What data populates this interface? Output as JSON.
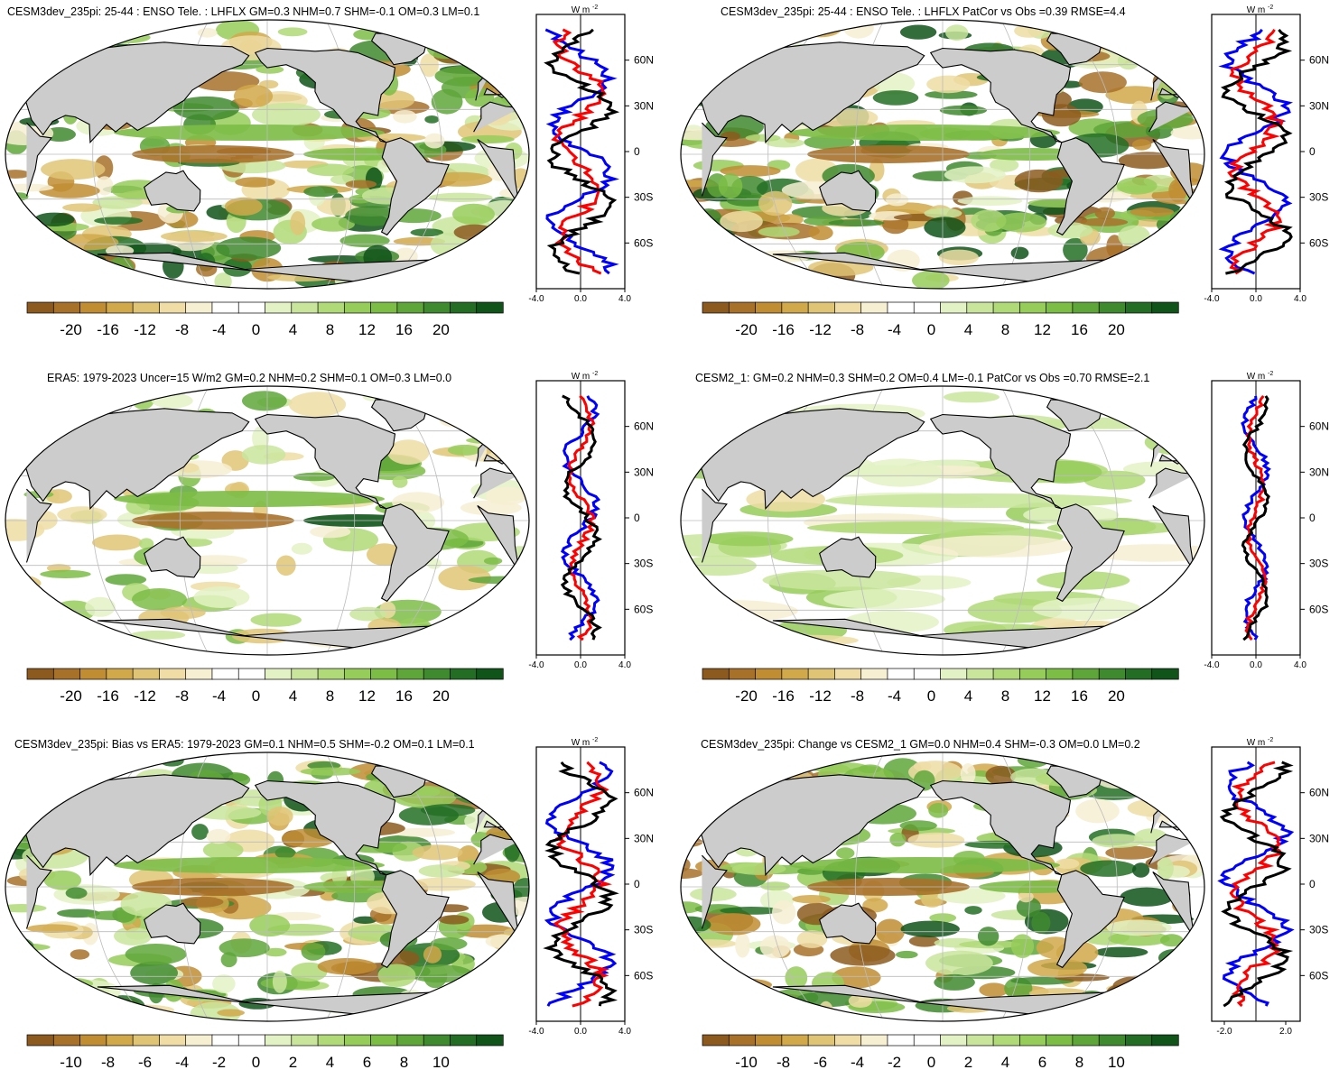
{
  "chart_data": [
    {
      "type": "heatmap",
      "title": "CESM3dev_235pi: 25-44 : ENSO Tele. : LHFLX GM=0.3 NHM=0.7 SHM=-0.1 OM=0.3 LM=0.1",
      "colorbar_ticks": [
        "-20",
        "-16",
        "-12",
        "-8",
        "-4",
        "0",
        "4",
        "8",
        "12",
        "16",
        "20"
      ],
      "zonal_mean": {
        "unit_label": "W m",
        "unit_exp": "-2",
        "xlim": [
          -4,
          4
        ],
        "xticks": [
          "-4.0",
          "0.0",
          "4.0"
        ],
        "lat_labels": [
          "60N",
          "30N",
          "0",
          "30S",
          "60S"
        ]
      },
      "style": "model",
      "seed": 3
    },
    {
      "type": "heatmap",
      "title": "CESM3dev_235pi: 25-44 : ENSO Tele. : LHFLX PatCor vs Obs =0.39 RMSE=4.4",
      "colorbar_ticks": [
        "-20",
        "-16",
        "-12",
        "-8",
        "-4",
        "0",
        "4",
        "8",
        "12",
        "16",
        "20"
      ],
      "zonal_mean": {
        "unit_label": "W m",
        "unit_exp": "-2",
        "xlim": [
          -4,
          4
        ],
        "xticks": [
          "-4.0",
          "0.0",
          "4.0"
        ],
        "lat_labels": [
          "60N",
          "30N",
          "0",
          "30S",
          "60S"
        ]
      },
      "style": "model",
      "seed": 5
    },
    {
      "type": "heatmap",
      "title": "ERA5: 1979-2023 Uncer=15 W/m2 GM=0.2 NHM=0.2 SHM=0.1 OM=0.3 LM=0.0",
      "colorbar_ticks": [
        "-20",
        "-16",
        "-12",
        "-8",
        "-4",
        "0",
        "4",
        "8",
        "12",
        "16",
        "20"
      ],
      "zonal_mean": {
        "unit_label": "W m",
        "unit_exp": "-2",
        "xlim": [
          -4,
          4
        ],
        "xticks": [
          "-4.0",
          "0.0",
          "4.0"
        ],
        "lat_labels": [
          "60N",
          "30N",
          "0",
          "30S",
          "60S"
        ]
      },
      "style": "obs",
      "seed": 7
    },
    {
      "type": "heatmap",
      "title": "CESM2_1: GM=0.2 NHM=0.3 SHM=0.2 OM=0.4 LM=-0.1 PatCor vs Obs =0.70 RMSE=2.1",
      "colorbar_ticks": [
        "-20",
        "-16",
        "-12",
        "-8",
        "-4",
        "0",
        "4",
        "8",
        "12",
        "16",
        "20"
      ],
      "zonal_mean": {
        "unit_label": "W m",
        "unit_exp": "-2",
        "xlim": [
          -4,
          4
        ],
        "xticks": [
          "-4.0",
          "0.0",
          "4.0"
        ],
        "lat_labels": [
          "60N",
          "30N",
          "0",
          "30S",
          "60S"
        ]
      },
      "style": "smooth",
      "seed": 11
    },
    {
      "type": "heatmap",
      "title": "CESM3dev_235pi: Bias vs ERA5: 1979-2023 GM=0.1 NHM=0.5 SHM=-0.2 OM=0.1 LM=0.1",
      "colorbar_ticks": [
        "-10",
        "-8",
        "-6",
        "-4",
        "-2",
        "0",
        "2",
        "4",
        "6",
        "8",
        "10"
      ],
      "zonal_mean": {
        "unit_label": "W m",
        "unit_exp": "-2",
        "xlim": [
          -4,
          4
        ],
        "xticks": [
          "-4.0",
          "0.0",
          "4.0"
        ],
        "lat_labels": [
          "60N",
          "30N",
          "0",
          "30S",
          "60S"
        ]
      },
      "style": "noisy",
      "seed": 13
    },
    {
      "type": "heatmap",
      "title": "CESM3dev_235pi: Change vs CESM2_1 GM=0.0 NHM=0.4 SHM=-0.3 OM=0.0 LM=0.2",
      "colorbar_ticks": [
        "-10",
        "-8",
        "-6",
        "-4",
        "-2",
        "0",
        "2",
        "4",
        "6",
        "8",
        "10"
      ],
      "zonal_mean": {
        "unit_label": "W m",
        "unit_exp": "-2",
        "xlim": [
          -3,
          3
        ],
        "xticks": [
          "-2.0",
          "2.0"
        ],
        "lat_labels": [
          "60N",
          "30N",
          "0",
          "30S",
          "60S"
        ]
      },
      "style": "noisy",
      "seed": 17
    }
  ],
  "colors": {
    "palette": [
      "#8c5a1e",
      "#a8712a",
      "#c08d32",
      "#d1a84a",
      "#e0c476",
      "#efdda5",
      "#f7efd2",
      "#ffffff",
      "#ffffff",
      "#e3f2c4",
      "#c9e59c",
      "#b0d978",
      "#96cc5a",
      "#7cbd46",
      "#5fa63a",
      "#3f8a2e",
      "#236e24",
      "#10541a"
    ],
    "land": "#cccccc",
    "grid": "#bbbbbb",
    "line_model": "#000000",
    "line_obs": "#ff0000",
    "line_ref": "#0000ff"
  }
}
